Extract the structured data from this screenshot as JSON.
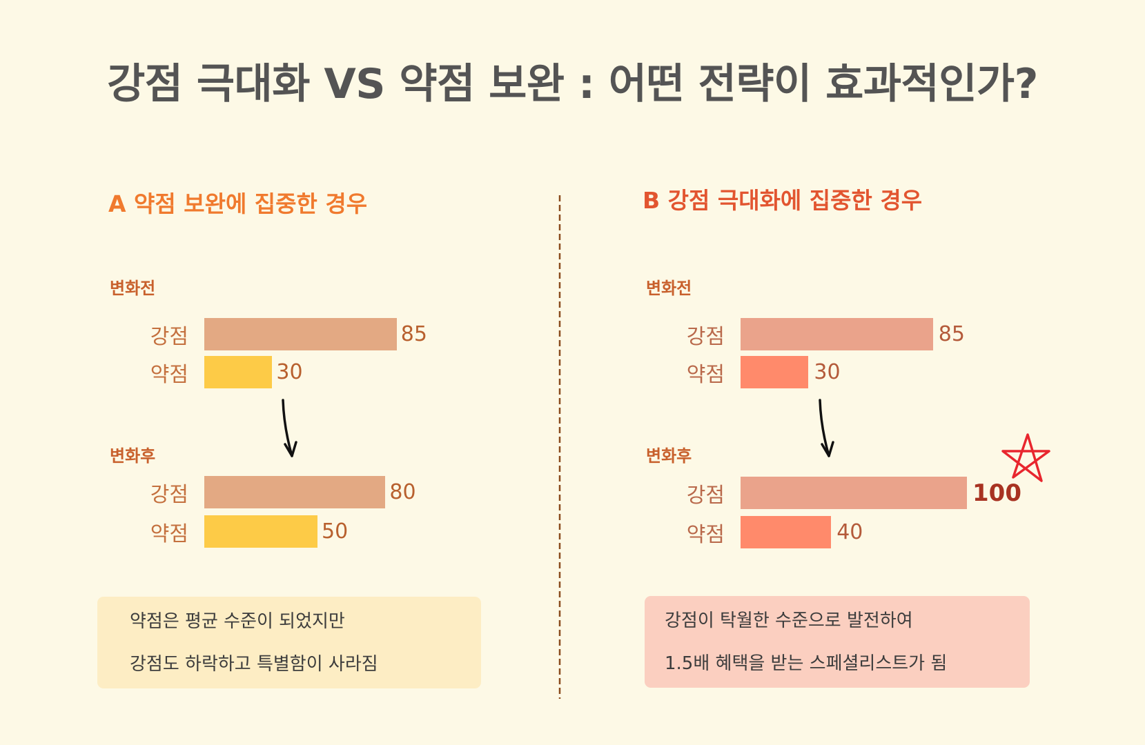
{
  "title": "강점 극대화 VS 약점 보완 : 어떤 전략이 효과적인가?",
  "colors": {
    "background": "#FDF9E6",
    "title": "#545454",
    "divider": "#8A4B1C",
    "note_a": "#FDEDC4",
    "note_b": "#FBCFC0",
    "star": "#E8262E"
  },
  "chart_data": [
    {
      "type": "bar",
      "orientation": "horizontal",
      "title": "A 약점 보완에 집중한 경우",
      "categories": [
        "강점",
        "약점"
      ],
      "series": [
        {
          "name": "변화전",
          "values": [
            85,
            30
          ]
        },
        {
          "name": "변화후",
          "values": [
            80,
            50
          ]
        }
      ],
      "colors": {
        "강점": "#E3A983",
        "약점": "#FDCB47"
      },
      "grid": false,
      "transition_icon": "arrow-down-icon"
    },
    {
      "type": "bar",
      "orientation": "horizontal",
      "title": "B 강점 극대화에 집중한 경우",
      "categories": [
        "강점",
        "약점"
      ],
      "series": [
        {
          "name": "변화전",
          "values": [
            85,
            30
          ]
        },
        {
          "name": "변화후",
          "values": [
            100,
            40
          ]
        }
      ],
      "colors": {
        "강점": "#EAA38B",
        "약점": "#FF8A6B"
      },
      "grid": false,
      "transition_icon": "arrow-down-icon",
      "highlight": {
        "series_index": 1,
        "category_index": 0,
        "icon": "star-icon"
      }
    }
  ],
  "notes": [
    [
      "약점은 평균 수준이 되었지만",
      "강점도 하락하고 특별함이 사라짐"
    ],
    [
      "강점이 탁월한 수준으로 발전하여",
      "1.5배 혜택을 받는 스페셜리스트가 됨"
    ]
  ]
}
